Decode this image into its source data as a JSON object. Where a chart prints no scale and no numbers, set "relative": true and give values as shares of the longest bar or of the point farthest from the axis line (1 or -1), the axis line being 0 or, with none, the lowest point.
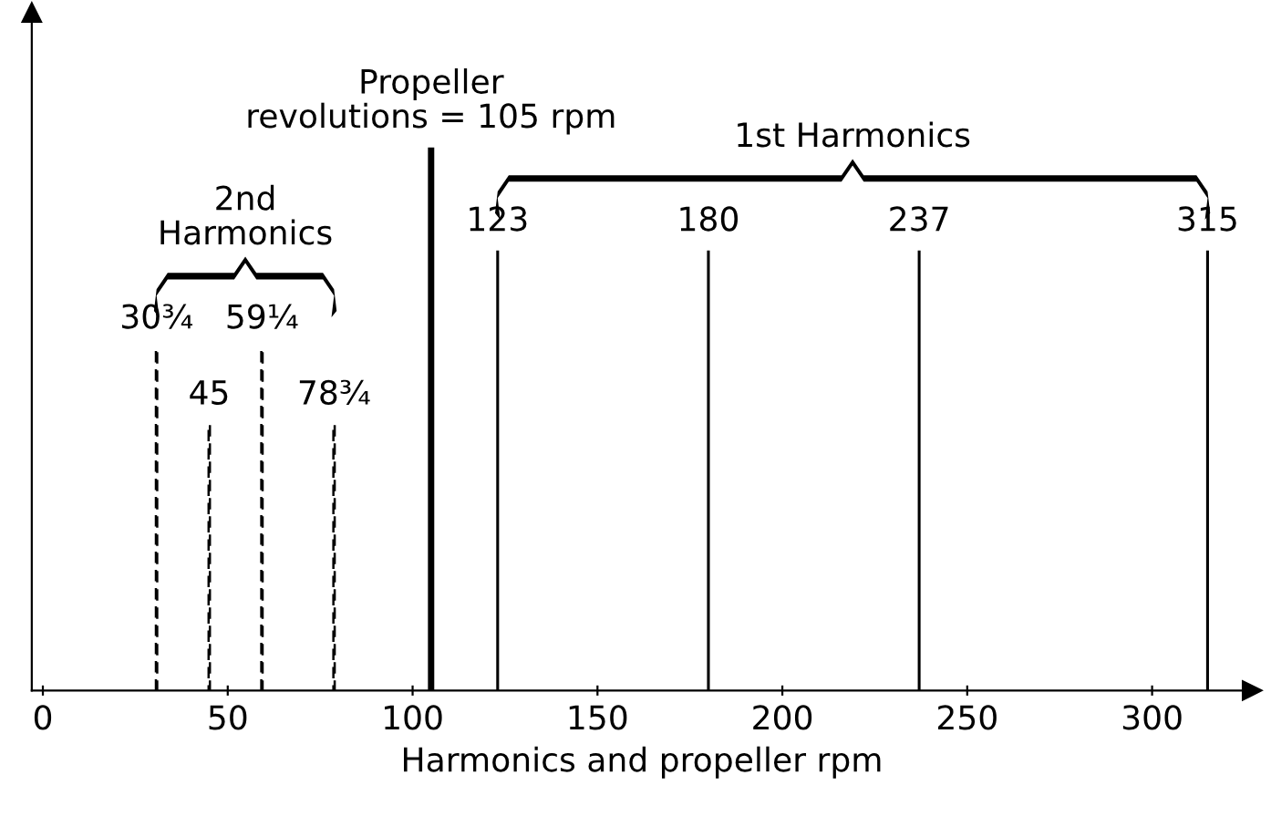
{
  "chart_data": {
    "type": "bar",
    "relative": true,
    "xlabel": "Harmonics and propeller rpm",
    "xlim": [
      -3,
      327
    ],
    "xticks": [
      0,
      50,
      100,
      150,
      200,
      250,
      300
    ],
    "grid": false,
    "legend": false,
    "series": [
      {
        "color": "#000000",
        "line_style": "dashed",
        "x": [
          30.75,
          45,
          59.25,
          78.75
        ],
        "values": [
          0.63,
          0.49,
          0.63,
          0.49
        ]
      },
      {
        "color": "#000000",
        "line_style": "solid",
        "x": [
          105
        ],
        "values": [
          1
        ]
      },
      {
        "color": "#000000",
        "line_style": "solid",
        "x": [
          123,
          180,
          237,
          315
        ],
        "values": [
          0.81,
          0.81,
          0.81,
          0.81
        ]
      }
    ],
    "annotations": [
      {
        "text": "30¾",
        "x": 30.75,
        "y": 0.63
      },
      {
        "text": "45",
        "x": 45,
        "y": 0.49
      },
      {
        "text": "59¼",
        "x": 59.25,
        "y": 0.63
      },
      {
        "text": "78¾",
        "x": 78.75,
        "y": 0.49
      },
      {
        "text": "Propeller\nrevolutions = 105 rpm",
        "x": 105,
        "y": 1
      },
      {
        "text": "123",
        "x": 123,
        "y": 0.81
      },
      {
        "text": "180",
        "x": 180,
        "y": 0.81
      },
      {
        "text": "237",
        "x": 237,
        "y": 0.81
      },
      {
        "text": "315",
        "x": 315,
        "y": 0.81
      },
      "2nd\nHarmonics",
      "1st Harmonics"
    ]
  }
}
